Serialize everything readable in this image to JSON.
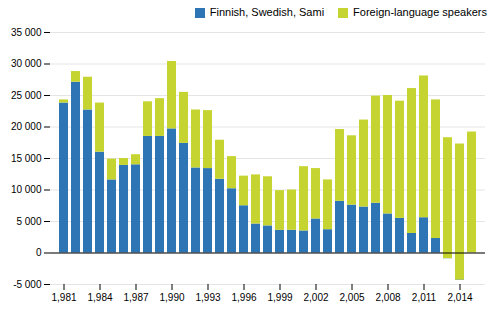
{
  "chart_data": {
    "type": "bar",
    "stacked": true,
    "categories": [
      1981,
      null,
      null,
      1984,
      null,
      null,
      1987,
      null,
      null,
      1990,
      null,
      null,
      1993,
      null,
      null,
      1996,
      null,
      null,
      1999,
      null,
      null,
      2002,
      null,
      null,
      2005,
      null,
      null,
      2008,
      null,
      null,
      2011,
      null,
      null,
      2014,
      null
    ],
    "series": [
      {
        "name": "Finnish, Swedish, Sami",
        "color": "#2e75b6",
        "values": [
          23800,
          27100,
          22700,
          16000,
          11600,
          13900,
          14000,
          18500,
          18500,
          19700,
          17400,
          13500,
          13400,
          11700,
          10200,
          7500,
          4600,
          4300,
          3600,
          3600,
          3500,
          5400,
          3700,
          8200,
          7600,
          7300,
          7900,
          6200,
          5500,
          3100,
          5600,
          2300,
          -900,
          -4300,
          0
        ]
      },
      {
        "name": "Foreign-language speakers",
        "color": "#c5d431",
        "values": [
          500,
          1700,
          5200,
          7800,
          3300,
          1100,
          1600,
          5500,
          6000,
          10700,
          8100,
          9200,
          9200,
          6200,
          5100,
          4700,
          7800,
          7800,
          6300,
          6400,
          10200,
          8000,
          7900,
          11400,
          11000,
          13800,
          17000,
          18800,
          18600,
          23000,
          22500,
          22000,
          19200,
          21600,
          19200
        ]
      }
    ],
    "ylim": [
      -5000,
      35000
    ],
    "yticks": [
      {
        "value": -5000,
        "label": "-5 000"
      },
      0,
      {
        "value": 5000,
        "label": "5 000"
      },
      {
        "value": 10000,
        "label": "10 000"
      },
      {
        "value": 15000,
        "label": "15 000"
      },
      {
        "value": 20000,
        "label": "20 000"
      },
      {
        "value": 25000,
        "label": "25 000"
      },
      {
        "value": 30000,
        "label": "30 000"
      },
      {
        "value": 35000,
        "label": "35 000"
      }
    ],
    "grid": true,
    "legend": "upper right"
  }
}
